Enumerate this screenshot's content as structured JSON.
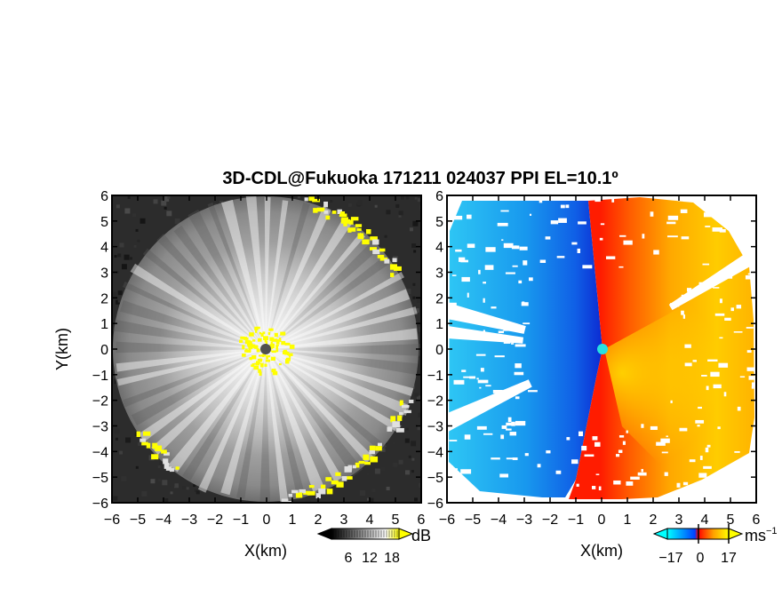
{
  "chart_data": {
    "title": "3D-CDL@Fukuoka 171211 024037 PPI EL=10.1º",
    "panels": [
      {
        "type": "heatmap",
        "field": "signal_intensity",
        "xlabel": "X(km)",
        "ylabel": "Y(km)",
        "xlim": [
          -6,
          6
        ],
        "ylim": [
          -6,
          6
        ],
        "x_ticks": [
          "−6",
          "−5",
          "−4",
          "−3",
          "−2",
          "−1",
          "0",
          "1",
          "2",
          "3",
          "4",
          "5",
          "6"
        ],
        "y_ticks": [
          "−6",
          "−5",
          "−4",
          "−3",
          "−2",
          "−1",
          "0",
          "1",
          "2",
          "3",
          "4",
          "5",
          "6"
        ],
        "colorbar": {
          "unit": "dB",
          "ticks": [
            "6",
            "12",
            "18"
          ],
          "colors": [
            "#000000",
            "#ffffff",
            "#ffff00"
          ]
        },
        "range_max_km": 5.9,
        "radial_spokes": 48
      },
      {
        "type": "heatmap",
        "field": "doppler_velocity",
        "xlabel": "X(km)",
        "ylabel": "",
        "xlim": [
          -6,
          6
        ],
        "ylim": [
          -6,
          6
        ],
        "x_ticks": [
          "−6",
          "−5",
          "−4",
          "−3",
          "−2",
          "−1",
          "0",
          "1",
          "2",
          "3",
          "4",
          "5",
          "6"
        ],
        "y_ticks": [
          "−6",
          "−5",
          "−4",
          "−3",
          "−2",
          "−1",
          "0",
          "1",
          "2",
          "3",
          "4",
          "5",
          "6"
        ],
        "colorbar": {
          "unit": "ms",
          "unit_exp": "−1",
          "ticks": [
            "−17",
            "0",
            "17"
          ],
          "colors": [
            "#00ffff",
            "#0040ff",
            "#ff0000",
            "#ffa000",
            "#ffff00"
          ]
        },
        "range_max_km": 6.2
      }
    ]
  }
}
